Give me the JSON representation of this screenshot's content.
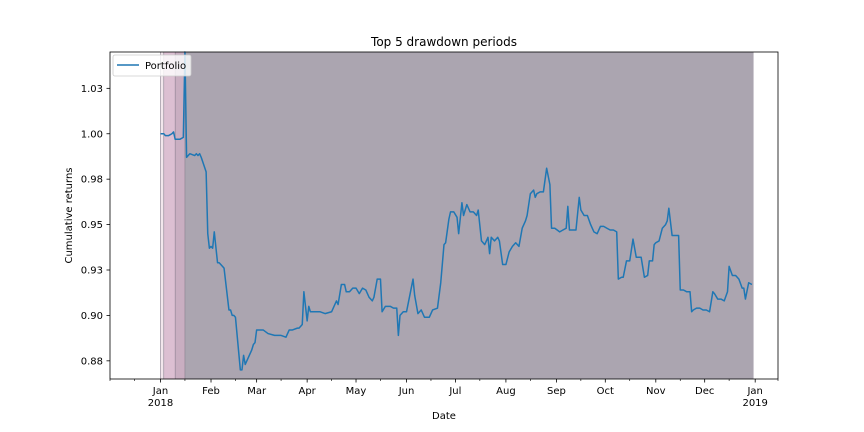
{
  "chart_data": {
    "type": "line",
    "title": "Top 5 drawdown periods",
    "xlabel": "Date",
    "ylabel": "Cumulative returns",
    "ylim": [
      0.865,
      1.045
    ],
    "xlim": [
      "2017-12-01",
      "2019-01-15"
    ],
    "grid": false,
    "legend": "top-left",
    "yticks": [
      {
        "value": 0.875,
        "label": "0.88"
      },
      {
        "value": 0.9,
        "label": "0.90"
      },
      {
        "value": 0.925,
        "label": "0.93"
      },
      {
        "value": 0.95,
        "label": "0.95"
      },
      {
        "value": 0.975,
        "label": "0.98"
      },
      {
        "value": 1.0,
        "label": "1.00"
      },
      {
        "value": 1.025,
        "label": "1.03"
      }
    ],
    "xticks": [
      {
        "date": "2018-01-01",
        "label": "Jan",
        "sub": "2018"
      },
      {
        "date": "2018-02-01",
        "label": "Feb",
        "sub": ""
      },
      {
        "date": "2018-03-01",
        "label": "Mar",
        "sub": ""
      },
      {
        "date": "2018-04-01",
        "label": "Apr",
        "sub": ""
      },
      {
        "date": "2018-05-01",
        "label": "May",
        "sub": ""
      },
      {
        "date": "2018-06-01",
        "label": "Jun",
        "sub": ""
      },
      {
        "date": "2018-07-01",
        "label": "Jul",
        "sub": ""
      },
      {
        "date": "2018-08-01",
        "label": "Aug",
        "sub": ""
      },
      {
        "date": "2018-09-01",
        "label": "Sep",
        "sub": ""
      },
      {
        "date": "2018-10-01",
        "label": "Oct",
        "sub": ""
      },
      {
        "date": "2018-11-01",
        "label": "Nov",
        "sub": ""
      },
      {
        "date": "2018-12-01",
        "label": "Dec",
        "sub": ""
      },
      {
        "date": "2019-01-01",
        "label": "Jan",
        "sub": "2019"
      }
    ],
    "minor_ticks": [
      "2017-12-01",
      "2017-12-16",
      "2018-01-16",
      "2018-02-16",
      "2018-03-16",
      "2018-04-16",
      "2018-05-16",
      "2018-06-16",
      "2018-07-16",
      "2018-08-16",
      "2018-09-16",
      "2018-10-16",
      "2018-11-16",
      "2018-12-16",
      "2019-01-15"
    ],
    "drawdown_periods": [
      {
        "start": "2018-01-01",
        "end": "2018-01-03",
        "color": "#f2e6ec"
      },
      {
        "start": "2018-01-03",
        "end": "2018-01-10",
        "color": "#dcbfd2"
      },
      {
        "start": "2018-01-10",
        "end": "2018-01-16",
        "color": "#c9aec1"
      },
      {
        "start": "2018-01-16",
        "end": "2018-12-31",
        "color": "#aba5b0"
      }
    ],
    "series": [
      {
        "name": "Portfolio",
        "color": "#1f77b4",
        "points": [
          [
            "2018-01-01",
            1.0
          ],
          [
            "2018-01-02",
            1.0
          ],
          [
            "2018-01-03",
            1.0
          ],
          [
            "2018-01-04",
            0.999
          ],
          [
            "2018-01-05",
            0.999
          ],
          [
            "2018-01-06",
            0.999
          ],
          [
            "2018-01-08",
            1.0
          ],
          [
            "2018-01-09",
            1.001
          ],
          [
            "2018-01-10",
            0.997
          ],
          [
            "2018-01-11",
            0.997
          ],
          [
            "2018-01-12",
            0.997
          ],
          [
            "2018-01-13",
            0.997
          ],
          [
            "2018-01-15",
            0.998
          ],
          [
            "2018-01-16",
            1.045
          ],
          [
            "2018-01-17",
            0.987
          ],
          [
            "2018-01-18",
            0.988
          ],
          [
            "2018-01-19",
            0.989
          ],
          [
            "2018-01-22",
            0.988
          ],
          [
            "2018-01-23",
            0.989
          ],
          [
            "2018-01-24",
            0.988
          ],
          [
            "2018-01-25",
            0.989
          ],
          [
            "2018-01-26",
            0.987
          ],
          [
            "2018-01-29",
            0.979
          ],
          [
            "2018-01-30",
            0.945
          ],
          [
            "2018-01-31",
            0.937
          ],
          [
            "2018-02-01",
            0.938
          ],
          [
            "2018-02-02",
            0.937
          ],
          [
            "2018-02-03",
            0.946
          ],
          [
            "2018-02-05",
            0.929
          ],
          [
            "2018-02-06",
            0.929
          ],
          [
            "2018-02-07",
            0.928
          ],
          [
            "2018-02-09",
            0.926
          ],
          [
            "2018-02-12",
            0.903
          ],
          [
            "2018-02-13",
            0.903
          ],
          [
            "2018-02-14",
            0.9
          ],
          [
            "2018-02-15",
            0.9
          ],
          [
            "2018-02-16",
            0.899
          ],
          [
            "2018-02-19",
            0.87
          ],
          [
            "2018-02-20",
            0.87
          ],
          [
            "2018-02-21",
            0.878
          ],
          [
            "2018-02-22",
            0.873
          ],
          [
            "2018-02-23",
            0.875
          ],
          [
            "2018-02-26",
            0.881
          ],
          [
            "2018-02-27",
            0.884
          ],
          [
            "2018-02-28",
            0.885
          ],
          [
            "2018-03-01",
            0.892
          ],
          [
            "2018-03-05",
            0.892
          ],
          [
            "2018-03-08",
            0.89
          ],
          [
            "2018-03-12",
            0.889
          ],
          [
            "2018-03-16",
            0.889
          ],
          [
            "2018-03-19",
            0.888
          ],
          [
            "2018-03-20",
            0.89
          ],
          [
            "2018-03-21",
            0.892
          ],
          [
            "2018-03-23",
            0.892
          ],
          [
            "2018-03-26",
            0.893
          ],
          [
            "2018-03-27",
            0.893
          ],
          [
            "2018-03-28",
            0.894
          ],
          [
            "2018-03-29",
            0.895
          ],
          [
            "2018-03-30",
            0.913
          ],
          [
            "2018-04-01",
            0.897
          ],
          [
            "2018-04-02",
            0.905
          ],
          [
            "2018-04-03",
            0.902
          ],
          [
            "2018-04-05",
            0.902
          ],
          [
            "2018-04-09",
            0.902
          ],
          [
            "2018-04-12",
            0.901
          ],
          [
            "2018-04-16",
            0.902
          ],
          [
            "2018-04-19",
            0.908
          ],
          [
            "2018-04-20",
            0.906
          ],
          [
            "2018-04-22",
            0.917
          ],
          [
            "2018-04-24",
            0.917
          ],
          [
            "2018-04-25",
            0.913
          ],
          [
            "2018-04-27",
            0.913
          ],
          [
            "2018-04-29",
            0.915
          ],
          [
            "2018-05-01",
            0.915
          ],
          [
            "2018-05-03",
            0.912
          ],
          [
            "2018-05-05",
            0.915
          ],
          [
            "2018-05-07",
            0.914
          ],
          [
            "2018-05-09",
            0.91
          ],
          [
            "2018-05-11",
            0.908
          ],
          [
            "2018-05-12",
            0.91
          ],
          [
            "2018-05-14",
            0.92
          ],
          [
            "2018-05-16",
            0.92
          ],
          [
            "2018-05-17",
            0.902
          ],
          [
            "2018-05-19",
            0.905
          ],
          [
            "2018-05-22",
            0.905
          ],
          [
            "2018-05-24",
            0.904
          ],
          [
            "2018-05-26",
            0.904
          ],
          [
            "2018-05-27",
            0.889
          ],
          [
            "2018-05-28",
            0.9
          ],
          [
            "2018-05-30",
            0.902
          ],
          [
            "2018-06-01",
            0.902
          ],
          [
            "2018-06-03",
            0.911
          ],
          [
            "2018-06-05",
            0.92
          ],
          [
            "2018-06-06",
            0.911
          ],
          [
            "2018-06-08",
            0.901
          ],
          [
            "2018-06-10",
            0.903
          ],
          [
            "2018-06-12",
            0.899
          ],
          [
            "2018-06-15",
            0.899
          ],
          [
            "2018-06-17",
            0.903
          ],
          [
            "2018-06-20",
            0.904
          ],
          [
            "2018-06-22",
            0.918
          ],
          [
            "2018-06-24",
            0.939
          ],
          [
            "2018-06-25",
            0.94
          ],
          [
            "2018-06-27",
            0.953
          ],
          [
            "2018-06-28",
            0.957
          ],
          [
            "2018-06-30",
            0.957
          ],
          [
            "2018-07-02",
            0.954
          ],
          [
            "2018-07-03",
            0.945
          ],
          [
            "2018-07-05",
            0.962
          ],
          [
            "2018-07-06",
            0.955
          ],
          [
            "2018-07-08",
            0.961
          ],
          [
            "2018-07-10",
            0.957
          ],
          [
            "2018-07-12",
            0.957
          ],
          [
            "2018-07-14",
            0.955
          ],
          [
            "2018-07-15",
            0.958
          ],
          [
            "2018-07-17",
            0.941
          ],
          [
            "2018-07-19",
            0.939
          ],
          [
            "2018-07-21",
            0.943
          ],
          [
            "2018-07-22",
            0.934
          ],
          [
            "2018-07-23",
            0.943
          ],
          [
            "2018-07-25",
            0.941
          ],
          [
            "2018-07-27",
            0.943
          ],
          [
            "2018-07-28",
            0.941
          ],
          [
            "2018-07-30",
            0.928
          ],
          [
            "2018-08-01",
            0.928
          ],
          [
            "2018-08-03",
            0.935
          ],
          [
            "2018-08-05",
            0.938
          ],
          [
            "2018-08-07",
            0.94
          ],
          [
            "2018-08-09",
            0.938
          ],
          [
            "2018-08-11",
            0.948
          ],
          [
            "2018-08-13",
            0.952
          ],
          [
            "2018-08-14",
            0.955
          ],
          [
            "2018-08-16",
            0.967
          ],
          [
            "2018-08-18",
            0.969
          ],
          [
            "2018-08-19",
            0.965
          ],
          [
            "2018-08-20",
            0.967
          ],
          [
            "2018-08-22",
            0.968
          ],
          [
            "2018-08-24",
            0.968
          ],
          [
            "2018-08-26",
            0.981
          ],
          [
            "2018-08-28",
            0.972
          ],
          [
            "2018-08-29",
            0.948
          ],
          [
            "2018-08-31",
            0.948
          ],
          [
            "2018-09-03",
            0.946
          ],
          [
            "2018-09-05",
            0.947
          ],
          [
            "2018-09-07",
            0.948
          ],
          [
            "2018-09-08",
            0.96
          ],
          [
            "2018-09-09",
            0.947
          ],
          [
            "2018-09-11",
            0.947
          ],
          [
            "2018-09-13",
            0.947
          ],
          [
            "2018-09-15",
            0.965
          ],
          [
            "2018-09-16",
            0.958
          ],
          [
            "2018-09-18",
            0.955
          ],
          [
            "2018-09-20",
            0.955
          ],
          [
            "2018-09-22",
            0.95
          ],
          [
            "2018-09-24",
            0.946
          ],
          [
            "2018-09-26",
            0.945
          ],
          [
            "2018-09-28",
            0.949
          ],
          [
            "2018-09-30",
            0.949
          ],
          [
            "2018-10-02",
            0.948
          ],
          [
            "2018-10-04",
            0.947
          ],
          [
            "2018-10-06",
            0.947
          ],
          [
            "2018-10-08",
            0.946
          ],
          [
            "2018-10-09",
            0.92
          ],
          [
            "2018-10-11",
            0.921
          ],
          [
            "2018-10-12",
            0.921
          ],
          [
            "2018-10-14",
            0.93
          ],
          [
            "2018-10-16",
            0.93
          ],
          [
            "2018-10-18",
            0.942
          ],
          [
            "2018-10-20",
            0.932
          ],
          [
            "2018-10-21",
            0.932
          ],
          [
            "2018-10-23",
            0.932
          ],
          [
            "2018-10-25",
            0.921
          ],
          [
            "2018-10-27",
            0.922
          ],
          [
            "2018-10-28",
            0.93
          ],
          [
            "2018-10-30",
            0.93
          ],
          [
            "2018-10-31",
            0.939
          ],
          [
            "2018-11-01",
            0.94
          ],
          [
            "2018-11-03",
            0.941
          ],
          [
            "2018-11-05",
            0.948
          ],
          [
            "2018-11-07",
            0.95
          ],
          [
            "2018-11-08",
            0.952
          ],
          [
            "2018-11-09",
            0.959
          ],
          [
            "2018-11-11",
            0.944
          ],
          [
            "2018-11-13",
            0.944
          ],
          [
            "2018-11-15",
            0.944
          ],
          [
            "2018-11-16",
            0.914
          ],
          [
            "2018-11-18",
            0.914
          ],
          [
            "2018-11-20",
            0.913
          ],
          [
            "2018-11-22",
            0.913
          ],
          [
            "2018-11-23",
            0.902
          ],
          [
            "2018-11-24",
            0.903
          ],
          [
            "2018-11-26",
            0.904
          ],
          [
            "2018-11-28",
            0.904
          ],
          [
            "2018-11-30",
            0.903
          ],
          [
            "2018-12-02",
            0.903
          ],
          [
            "2018-12-04",
            0.902
          ],
          [
            "2018-12-06",
            0.913
          ],
          [
            "2018-12-07",
            0.912
          ],
          [
            "2018-12-09",
            0.909
          ],
          [
            "2018-12-11",
            0.909
          ],
          [
            "2018-12-13",
            0.908
          ],
          [
            "2018-12-15",
            0.913
          ],
          [
            "2018-12-16",
            0.927
          ],
          [
            "2018-12-18",
            0.922
          ],
          [
            "2018-12-20",
            0.922
          ],
          [
            "2018-12-22",
            0.92
          ],
          [
            "2018-12-24",
            0.915
          ],
          [
            "2018-12-25",
            0.915
          ],
          [
            "2018-12-26",
            0.909
          ],
          [
            "2018-12-28",
            0.918
          ],
          [
            "2018-12-30",
            0.917
          ]
        ]
      }
    ]
  }
}
